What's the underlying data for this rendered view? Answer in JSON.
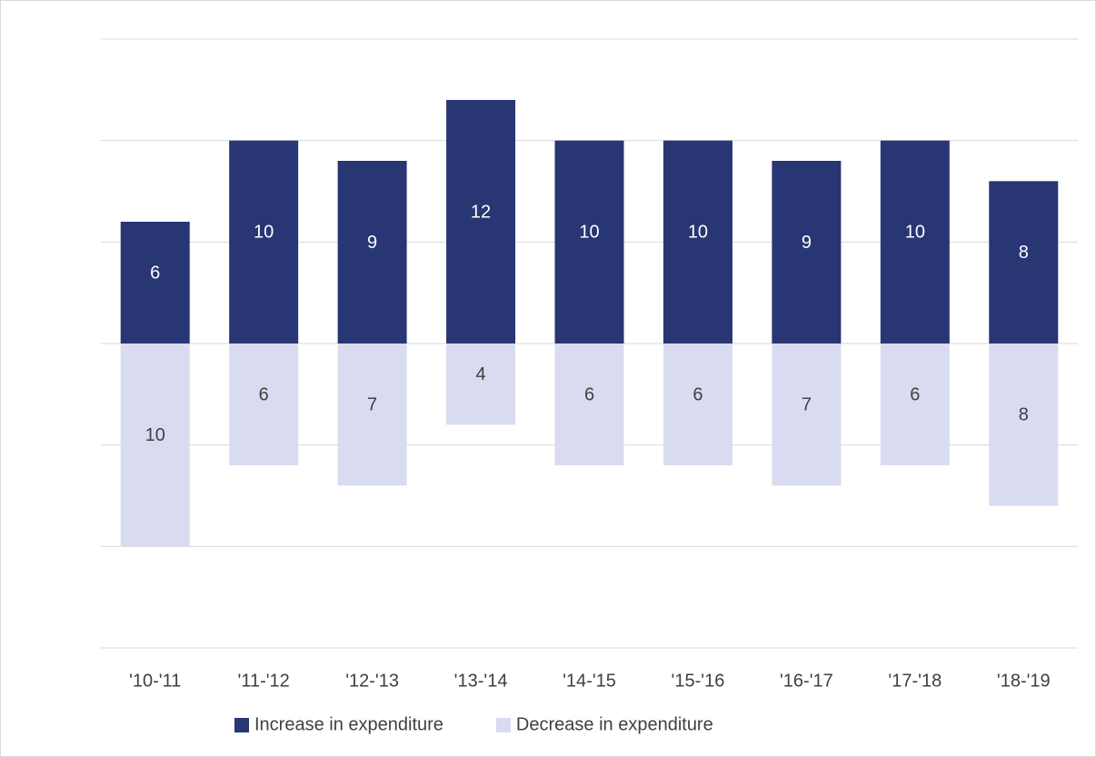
{
  "chart_data": {
    "type": "bar",
    "stacked": true,
    "categories": [
      "'10-'11",
      "'11-'12",
      "'12-'13",
      "'13-'14",
      "'14-'15",
      "'15-'16",
      "'16-'17",
      "'17-'18",
      "'18-'19"
    ],
    "series": [
      {
        "name": "Increase in expenditure",
        "color": "#283673",
        "label_color": "#ffffff",
        "values": [
          6,
          10,
          9,
          12,
          10,
          10,
          9,
          10,
          8
        ]
      },
      {
        "name": "Decrease in expenditure",
        "color": "#d9dcf0",
        "label_color": "#404040",
        "values": [
          -10,
          -6,
          -7,
          -4,
          -6,
          -6,
          -7,
          -6,
          -8
        ],
        "value_labels": [
          "10",
          "6",
          "7",
          "4",
          "6",
          "6",
          "7",
          "6",
          "8"
        ]
      }
    ],
    "ylim": [
      -15,
      15
    ],
    "yticks": [
      -15,
      -10,
      -5,
      0,
      5,
      10,
      15
    ],
    "grid": true,
    "legend": "bottom"
  }
}
